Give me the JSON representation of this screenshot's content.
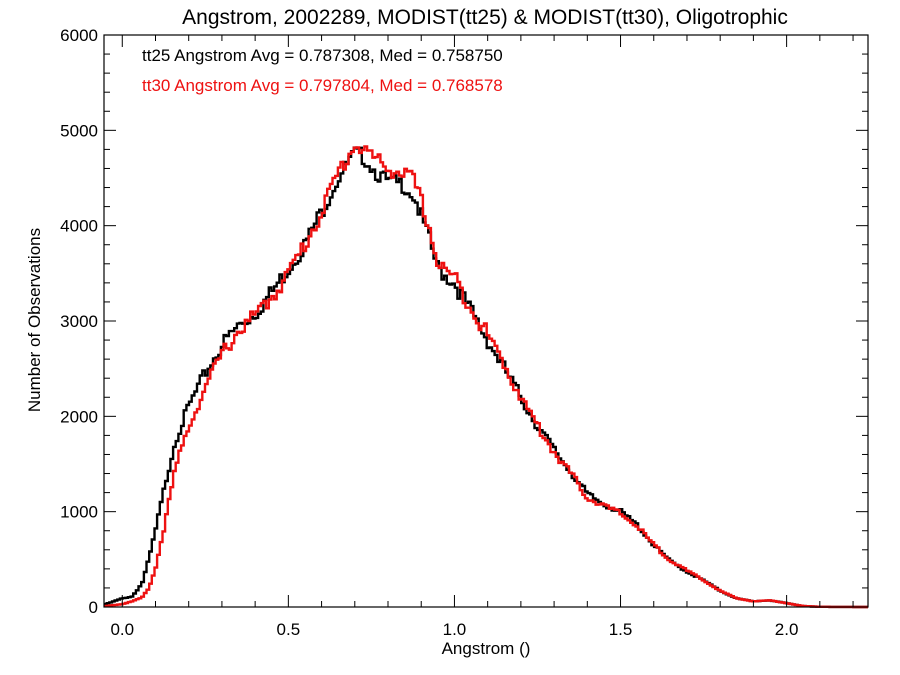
{
  "chart_data": {
    "type": "line",
    "title": "Angstrom, 2002289, MODIST(tt25) & MODIST(tt30), Oligotrophic",
    "xlabel": "Angstrom ()",
    "ylabel": "Number of Observations",
    "xlim": [
      -0.055,
      2.245
    ],
    "ylim": [
      0,
      6000
    ],
    "x_ticks": [
      "0.0",
      "0.5",
      "1.0",
      "1.5",
      "2.0"
    ],
    "y_ticks": [
      "0",
      "1000",
      "2000",
      "3000",
      "4000",
      "5000",
      "6000"
    ],
    "grid": false,
    "step": true,
    "annotations": [
      {
        "text": "tt25 Angstrom Avg = 0.787308, Med = 0.758750",
        "color": "#000000"
      },
      {
        "text": "tt30 Angstrom Avg = 0.797804, Med = 0.768578",
        "color": "#ee1111"
      }
    ],
    "series": [
      {
        "color": "#000000",
        "points": [
          [
            -0.05,
            30
          ],
          [
            0.0,
            90
          ],
          [
            0.03,
            110
          ],
          [
            0.06,
            250
          ],
          [
            0.08,
            500
          ],
          [
            0.1,
            800
          ],
          [
            0.13,
            1300
          ],
          [
            0.16,
            1750
          ],
          [
            0.2,
            2100
          ],
          [
            0.25,
            2450
          ],
          [
            0.3,
            2750
          ],
          [
            0.35,
            2950
          ],
          [
            0.4,
            3080
          ],
          [
            0.45,
            3300
          ],
          [
            0.5,
            3550
          ],
          [
            0.55,
            3800
          ],
          [
            0.6,
            4150
          ],
          [
            0.65,
            4500
          ],
          [
            0.7,
            4750
          ],
          [
            0.73,
            4720
          ],
          [
            0.76,
            4580
          ],
          [
            0.8,
            4450
          ],
          [
            0.85,
            4430
          ],
          [
            0.88,
            4300
          ],
          [
            0.92,
            3900
          ],
          [
            0.95,
            3550
          ],
          [
            1.0,
            3400
          ],
          [
            1.05,
            3100
          ],
          [
            1.1,
            2800
          ],
          [
            1.15,
            2500
          ],
          [
            1.2,
            2200
          ],
          [
            1.25,
            1900
          ],
          [
            1.3,
            1650
          ],
          [
            1.35,
            1420
          ],
          [
            1.4,
            1180
          ],
          [
            1.45,
            1080
          ],
          [
            1.5,
            1000
          ],
          [
            1.55,
            860
          ],
          [
            1.6,
            650
          ],
          [
            1.65,
            480
          ],
          [
            1.7,
            370
          ],
          [
            1.75,
            280
          ],
          [
            1.8,
            170
          ],
          [
            1.85,
            90
          ],
          [
            1.9,
            60
          ],
          [
            1.95,
            70
          ],
          [
            2.0,
            40
          ],
          [
            2.05,
            10
          ],
          [
            2.1,
            2
          ],
          [
            2.24,
            0
          ]
        ]
      },
      {
        "color": "#ee1111",
        "points": [
          [
            -0.05,
            10
          ],
          [
            0.0,
            30
          ],
          [
            0.03,
            60
          ],
          [
            0.06,
            100
          ],
          [
            0.08,
            200
          ],
          [
            0.1,
            400
          ],
          [
            0.13,
            900
          ],
          [
            0.16,
            1450
          ],
          [
            0.2,
            1900
          ],
          [
            0.25,
            2300
          ],
          [
            0.3,
            2650
          ],
          [
            0.35,
            2900
          ],
          [
            0.4,
            3050
          ],
          [
            0.45,
            3250
          ],
          [
            0.5,
            3500
          ],
          [
            0.55,
            3800
          ],
          [
            0.6,
            4150
          ],
          [
            0.65,
            4550
          ],
          [
            0.7,
            4850
          ],
          [
            0.73,
            4800
          ],
          [
            0.76,
            4700
          ],
          [
            0.8,
            4600
          ],
          [
            0.85,
            4550
          ],
          [
            0.88,
            4450
          ],
          [
            0.92,
            4050
          ],
          [
            0.95,
            3600
          ],
          [
            1.0,
            3450
          ],
          [
            1.05,
            3150
          ],
          [
            1.1,
            2850
          ],
          [
            1.15,
            2550
          ],
          [
            1.2,
            2200
          ],
          [
            1.25,
            1900
          ],
          [
            1.3,
            1630
          ],
          [
            1.35,
            1400
          ],
          [
            1.4,
            1150
          ],
          [
            1.45,
            1060
          ],
          [
            1.5,
            980
          ],
          [
            1.55,
            850
          ],
          [
            1.6,
            650
          ],
          [
            1.65,
            490
          ],
          [
            1.7,
            380
          ],
          [
            1.75,
            280
          ],
          [
            1.8,
            170
          ],
          [
            1.85,
            90
          ],
          [
            1.9,
            60
          ],
          [
            1.95,
            70
          ],
          [
            2.0,
            40
          ],
          [
            2.05,
            10
          ],
          [
            2.1,
            2
          ],
          [
            2.24,
            0
          ]
        ]
      }
    ]
  }
}
